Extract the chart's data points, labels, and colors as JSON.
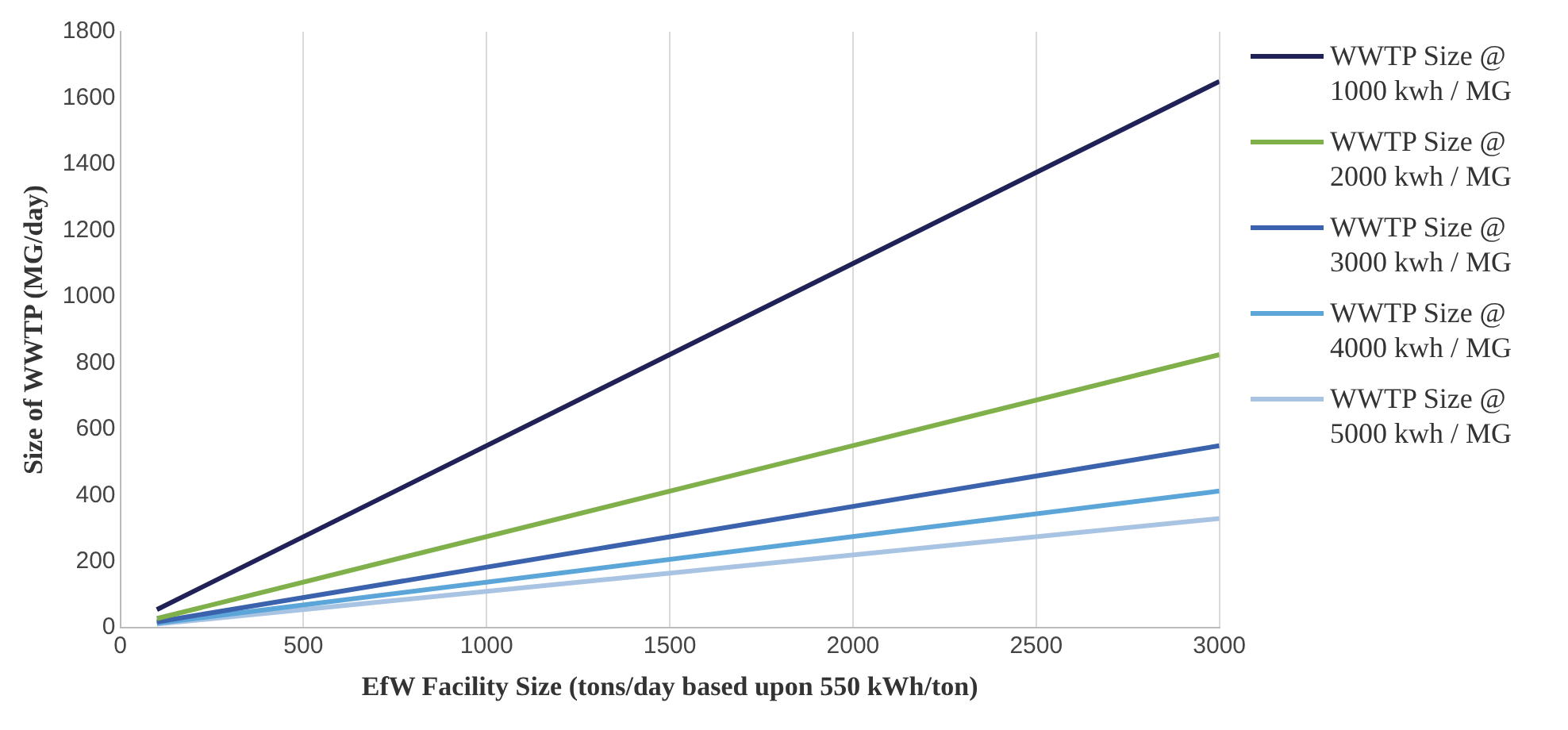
{
  "chart_data": {
    "type": "line",
    "xlabel": "EfW Facility Size (tons/day based upon 550 kWh/ton)",
    "ylabel": "Size of WWTP (MG/day)",
    "x": [
      100,
      3000
    ],
    "series": [
      {
        "name": "WWTP Size @ 1000 kwh / MG",
        "color": "#1f2157",
        "values": [
          55,
          1650
        ]
      },
      {
        "name": "WWTP Size @ 2000 kwh / MG",
        "color": "#7fb04a",
        "values": [
          28,
          825
        ]
      },
      {
        "name": "WWTP Size @ 3000 kwh / MG",
        "color": "#3b62ac",
        "values": [
          18,
          550
        ]
      },
      {
        "name": "WWTP Size @ 4000 kwh / MG",
        "color": "#5ba5d9",
        "values": [
          14,
          413
        ]
      },
      {
        "name": "WWTP Size @ 5000 kwh / MG",
        "color": "#a9c3e3",
        "values": [
          11,
          330
        ]
      }
    ],
    "xlim": [
      0,
      3000
    ],
    "xticks": [
      0,
      500,
      1000,
      1500,
      2000,
      2500,
      3000
    ],
    "ylim": [
      0,
      1800
    ],
    "yticks": [
      0,
      200,
      400,
      600,
      800,
      1000,
      1200,
      1400,
      1600,
      1800
    ],
    "grid": "x",
    "legend": "right",
    "marker": "none",
    "line_style": "solid"
  }
}
